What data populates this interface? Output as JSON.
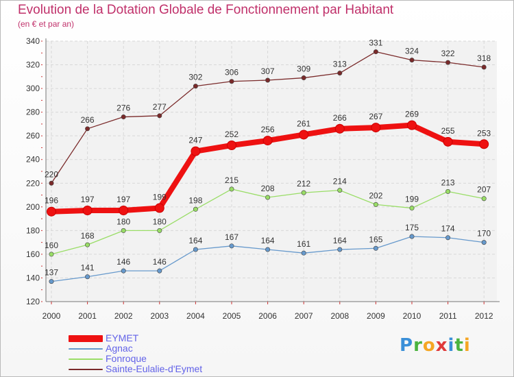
{
  "title": "Evolution de la Dotation Globale de Fonctionnement par Habitant",
  "subtitle": "(en € et par an)",
  "logo": {
    "letters": [
      "P",
      "r",
      "o",
      "x",
      "i",
      "t",
      "i"
    ],
    "colors": [
      "#3a8fd8",
      "#4bb33f",
      "#f5a623",
      "#e03a3a",
      "#3a8fd8",
      "#4bb33f",
      "#f5a623"
    ]
  },
  "chart_data": {
    "type": "line",
    "title": "Evolution de la Dotation Globale de Fonctionnement par Habitant",
    "subtitle": "(en € et par an)",
    "xlabel": "",
    "ylabel": "",
    "ylim": [
      120,
      340
    ],
    "yticks": [
      120,
      140,
      160,
      180,
      200,
      220,
      240,
      260,
      280,
      300,
      320,
      340
    ],
    "categories": [
      "2000",
      "2001",
      "2002",
      "2003",
      "2004",
      "2005",
      "2006",
      "2007",
      "2008",
      "2009",
      "2010",
      "2011",
      "2012"
    ],
    "series": [
      {
        "name": "EYMET",
        "color": "#ee1111",
        "values": [
          196,
          197,
          197,
          199,
          247,
          252,
          256,
          261,
          266,
          267,
          269,
          255,
          253
        ],
        "labels": [
          "196",
          "197",
          "197",
          "199",
          "247",
          "252",
          "256",
          "261",
          "266",
          "267",
          "269",
          "255",
          "253"
        ]
      },
      {
        "name": "Agnac",
        "color": "#6699cc",
        "values": [
          137,
          141,
          146,
          146,
          164,
          167,
          164,
          161,
          164,
          165,
          175,
          174,
          170
        ],
        "labels": [
          "137",
          "141",
          "146",
          "146",
          "164",
          "167",
          "164",
          "161",
          "164",
          "165",
          "175",
          "174",
          "170"
        ]
      },
      {
        "name": "Fonroque",
        "color": "#99dd66",
        "values": [
          160,
          168,
          180,
          180,
          198,
          215,
          208,
          212,
          214,
          202,
          199,
          213,
          207
        ],
        "labels": [
          "160",
          "168",
          "180",
          "180",
          "198",
          "215",
          "208",
          "212",
          "214",
          "202",
          "199",
          "213",
          "207"
        ]
      },
      {
        "name": "Sainte-Eulalie-d'Eymet",
        "color": "#7a2a2a",
        "values": [
          220,
          266,
          276,
          277,
          302,
          306,
          307,
          309,
          313,
          331,
          324,
          322,
          318
        ],
        "labels": [
          "220",
          "266",
          "276",
          "277",
          "302",
          "306",
          "307",
          "309",
          "313",
          "331",
          "324",
          "322",
          "318"
        ]
      }
    ],
    "legend_position": "bottom-left",
    "grid": true
  }
}
